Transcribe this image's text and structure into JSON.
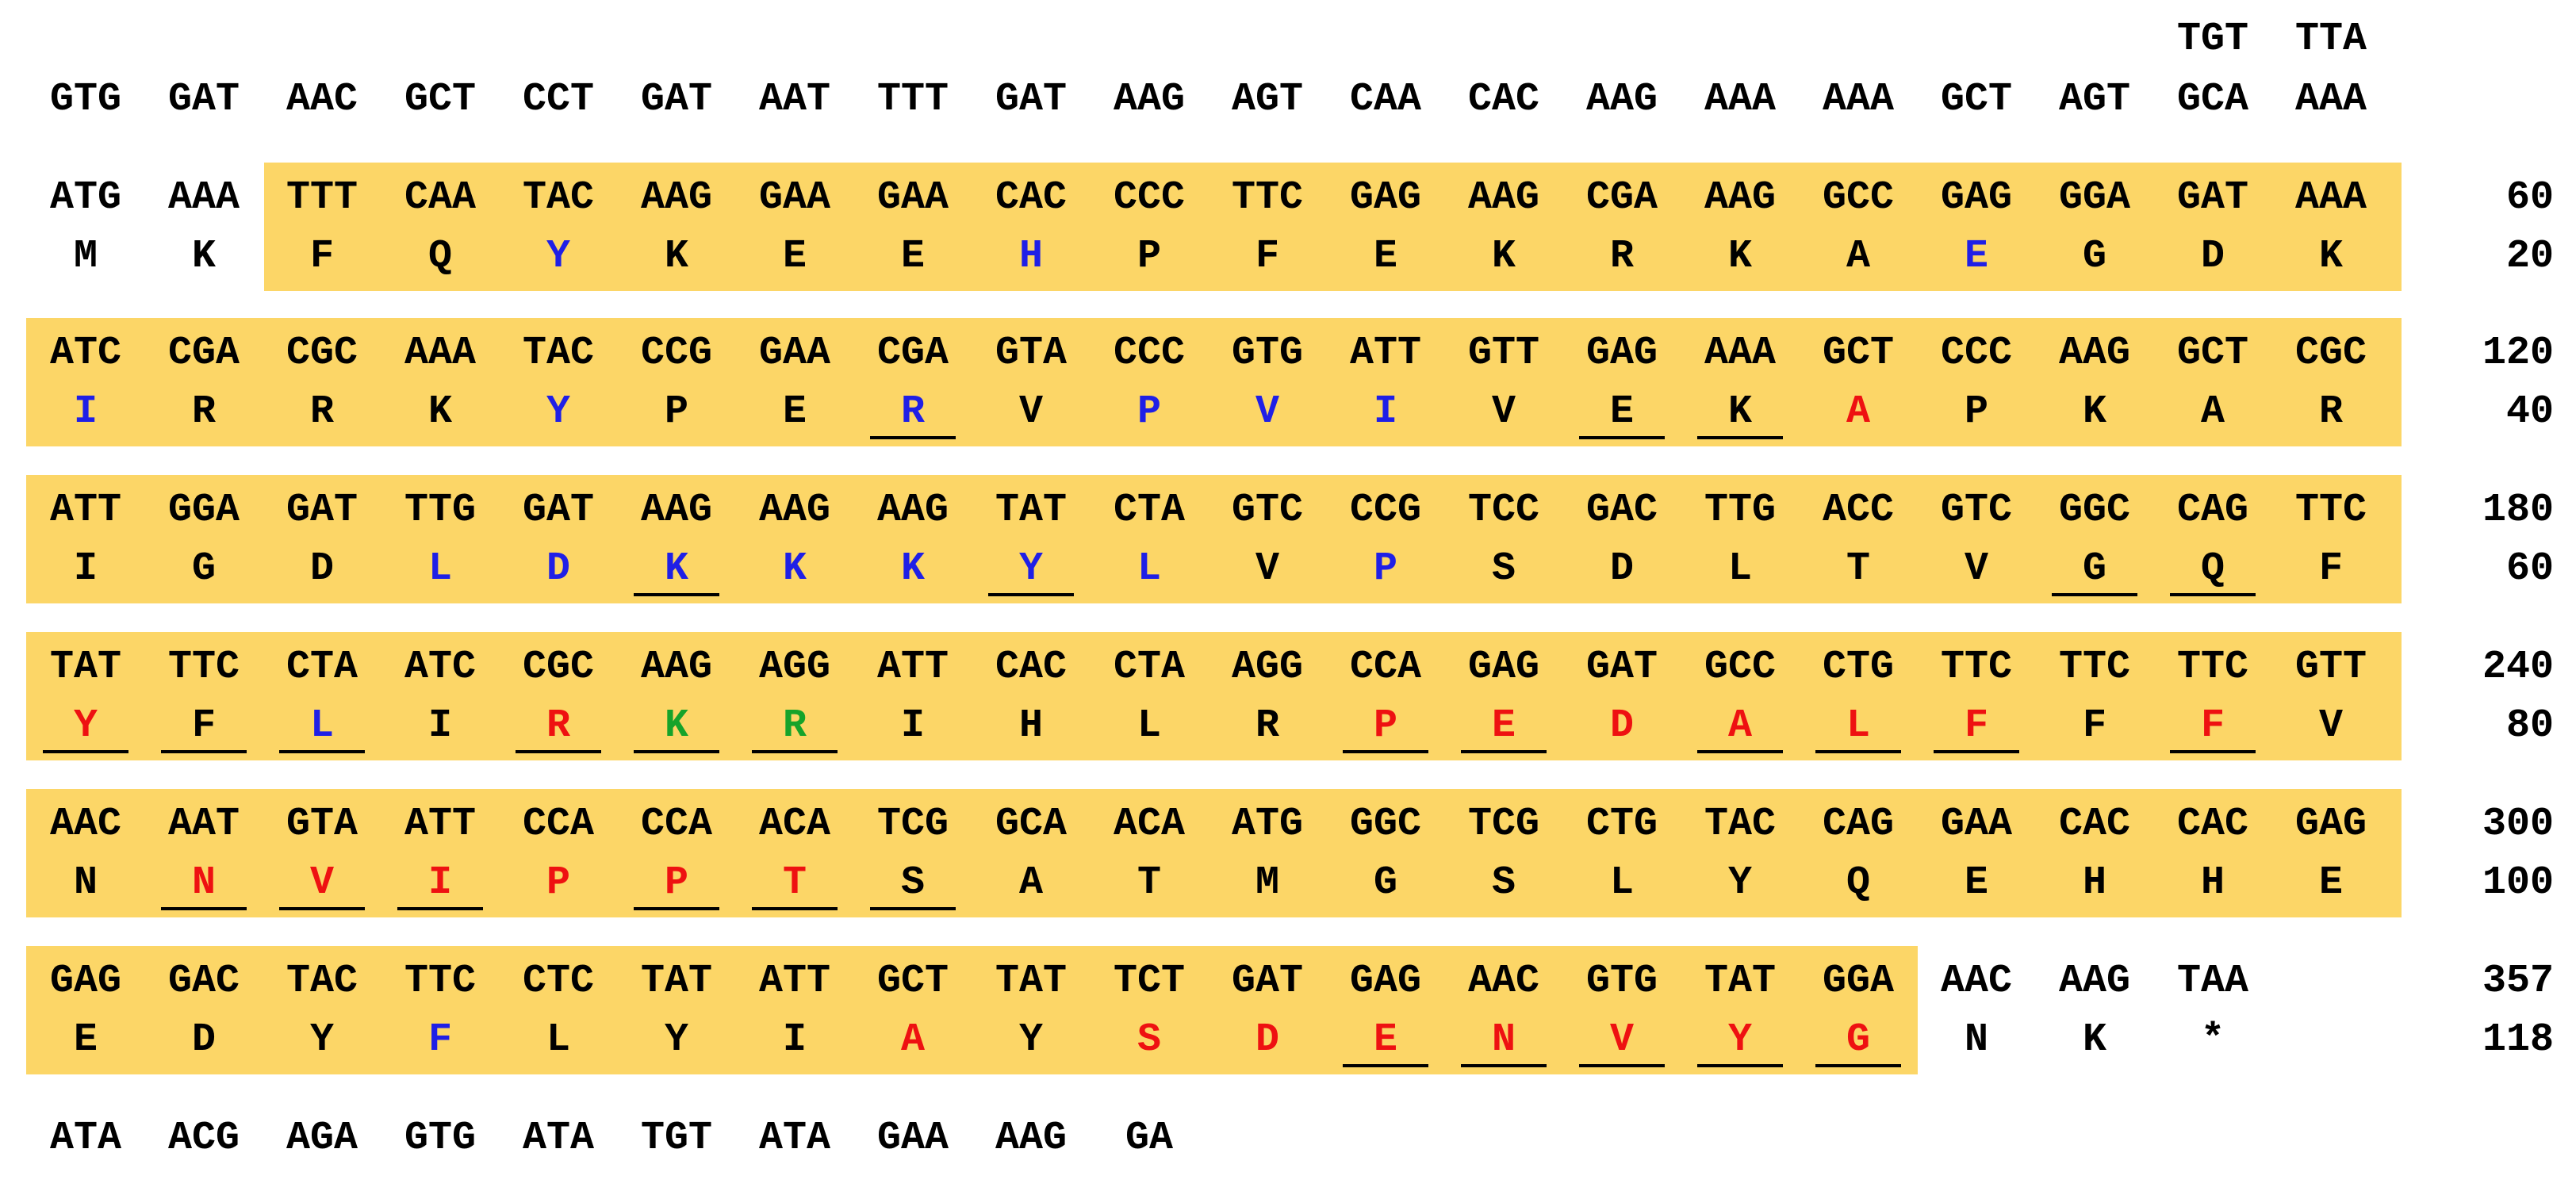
{
  "colors": {
    "highlight": "#fcd667",
    "black": "#000000",
    "blue": "#1f1fe6",
    "red": "#ee1111",
    "green": "#16a32a"
  },
  "upstream": {
    "extra": [
      "TGT",
      "TTA"
    ],
    "codons": [
      "GTG",
      "GAT",
      "AAC",
      "GCT",
      "CCT",
      "GAT",
      "AAT",
      "TTT",
      "GAT",
      "AAG",
      "AGT",
      "CAA",
      "CAC",
      "AAG",
      "AAA",
      "AAA",
      "GCT",
      "AGT",
      "GCA",
      "AAA"
    ]
  },
  "blocks": [
    {
      "nt_num": "60",
      "aa_num": "20",
      "codons": [
        "ATG",
        "AAA",
        "TTT",
        "CAA",
        "TAC",
        "AAG",
        "GAA",
        "GAA",
        "CAC",
        "CCC",
        "TTC",
        "GAG",
        "AAG",
        "CGA",
        "AAG",
        "GCC",
        "GAG",
        "GGA",
        "GAT",
        "AAA"
      ],
      "aas": [
        {
          "aa": "M",
          "color": "black",
          "underline": false
        },
        {
          "aa": "K",
          "color": "black",
          "underline": false
        },
        {
          "aa": "F",
          "color": "black",
          "underline": false
        },
        {
          "aa": "Q",
          "color": "black",
          "underline": false
        },
        {
          "aa": "Y",
          "color": "blue",
          "underline": false
        },
        {
          "aa": "K",
          "color": "black",
          "underline": false
        },
        {
          "aa": "E",
          "color": "black",
          "underline": false
        },
        {
          "aa": "E",
          "color": "black",
          "underline": false
        },
        {
          "aa": "H",
          "color": "blue",
          "underline": false
        },
        {
          "aa": "P",
          "color": "black",
          "underline": false
        },
        {
          "aa": "F",
          "color": "black",
          "underline": false
        },
        {
          "aa": "E",
          "color": "black",
          "underline": false
        },
        {
          "aa": "K",
          "color": "black",
          "underline": false
        },
        {
          "aa": "R",
          "color": "black",
          "underline": false
        },
        {
          "aa": "K",
          "color": "black",
          "underline": false
        },
        {
          "aa": "A",
          "color": "black",
          "underline": false
        },
        {
          "aa": "E",
          "color": "blue",
          "underline": false
        },
        {
          "aa": "G",
          "color": "black",
          "underline": false
        },
        {
          "aa": "D",
          "color": "black",
          "underline": false
        },
        {
          "aa": "K",
          "color": "black",
          "underline": false
        }
      ]
    },
    {
      "nt_num": "120",
      "aa_num": "40",
      "codons": [
        "ATC",
        "CGA",
        "CGC",
        "AAA",
        "TAC",
        "CCG",
        "GAA",
        "CGA",
        "GTA",
        "CCC",
        "GTG",
        "ATT",
        "GTT",
        "GAG",
        "AAA",
        "GCT",
        "CCC",
        "AAG",
        "GCT",
        "CGC"
      ],
      "aas": [
        {
          "aa": "I",
          "color": "blue",
          "underline": false
        },
        {
          "aa": "R",
          "color": "black",
          "underline": false
        },
        {
          "aa": "R",
          "color": "black",
          "underline": false
        },
        {
          "aa": "K",
          "color": "black",
          "underline": false
        },
        {
          "aa": "Y",
          "color": "blue",
          "underline": false
        },
        {
          "aa": "P",
          "color": "black",
          "underline": false
        },
        {
          "aa": "E",
          "color": "black",
          "underline": false
        },
        {
          "aa": "R",
          "color": "blue",
          "underline": true
        },
        {
          "aa": "V",
          "color": "black",
          "underline": false
        },
        {
          "aa": "P",
          "color": "blue",
          "underline": false
        },
        {
          "aa": "V",
          "color": "blue",
          "underline": false
        },
        {
          "aa": "I",
          "color": "blue",
          "underline": false
        },
        {
          "aa": "V",
          "color": "black",
          "underline": false
        },
        {
          "aa": "E",
          "color": "black",
          "underline": true
        },
        {
          "aa": "K",
          "color": "black",
          "underline": true
        },
        {
          "aa": "A",
          "color": "red",
          "underline": false
        },
        {
          "aa": "P",
          "color": "black",
          "underline": false
        },
        {
          "aa": "K",
          "color": "black",
          "underline": false
        },
        {
          "aa": "A",
          "color": "black",
          "underline": false
        },
        {
          "aa": "R",
          "color": "black",
          "underline": false
        }
      ]
    },
    {
      "nt_num": "180",
      "aa_num": "60",
      "codons": [
        "ATT",
        "GGA",
        "GAT",
        "TTG",
        "GAT",
        "AAG",
        "AAG",
        "AAG",
        "TAT",
        "CTA",
        "GTC",
        "CCG",
        "TCC",
        "GAC",
        "TTG",
        "ACC",
        "GTC",
        "GGC",
        "CAG",
        "TTC"
      ],
      "aas": [
        {
          "aa": "I",
          "color": "black",
          "underline": false
        },
        {
          "aa": "G",
          "color": "black",
          "underline": false
        },
        {
          "aa": "D",
          "color": "black",
          "underline": false
        },
        {
          "aa": "L",
          "color": "blue",
          "underline": false
        },
        {
          "aa": "D",
          "color": "blue",
          "underline": false
        },
        {
          "aa": "K",
          "color": "blue",
          "underline": true
        },
        {
          "aa": "K",
          "color": "blue",
          "underline": false
        },
        {
          "aa": "K",
          "color": "blue",
          "underline": false
        },
        {
          "aa": "Y",
          "color": "blue",
          "underline": true
        },
        {
          "aa": "L",
          "color": "blue",
          "underline": false
        },
        {
          "aa": "V",
          "color": "black",
          "underline": false
        },
        {
          "aa": "P",
          "color": "blue",
          "underline": false
        },
        {
          "aa": "S",
          "color": "black",
          "underline": false
        },
        {
          "aa": "D",
          "color": "black",
          "underline": false
        },
        {
          "aa": "L",
          "color": "black",
          "underline": false
        },
        {
          "aa": "T",
          "color": "black",
          "underline": false
        },
        {
          "aa": "V",
          "color": "black",
          "underline": false
        },
        {
          "aa": "G",
          "color": "black",
          "underline": true
        },
        {
          "aa": "Q",
          "color": "black",
          "underline": true
        },
        {
          "aa": "F",
          "color": "black",
          "underline": false
        }
      ]
    },
    {
      "nt_num": "240",
      "aa_num": "80",
      "codons": [
        "TAT",
        "TTC",
        "CTA",
        "ATC",
        "CGC",
        "AAG",
        "AGG",
        "ATT",
        "CAC",
        "CTA",
        "AGG",
        "CCA",
        "GAG",
        "GAT",
        "GCC",
        "CTG",
        "TTC",
        "TTC",
        "TTC",
        "GTT"
      ],
      "aas": [
        {
          "aa": "Y",
          "color": "red",
          "underline": true
        },
        {
          "aa": "F",
          "color": "black",
          "underline": true
        },
        {
          "aa": "L",
          "color": "blue",
          "underline": true
        },
        {
          "aa": "I",
          "color": "black",
          "underline": false
        },
        {
          "aa": "R",
          "color": "red",
          "underline": true
        },
        {
          "aa": "K",
          "color": "green",
          "underline": true
        },
        {
          "aa": "R",
          "color": "green",
          "underline": true
        },
        {
          "aa": "I",
          "color": "black",
          "underline": false
        },
        {
          "aa": "H",
          "color": "black",
          "underline": false
        },
        {
          "aa": "L",
          "color": "black",
          "underline": false
        },
        {
          "aa": "R",
          "color": "black",
          "underline": false
        },
        {
          "aa": "P",
          "color": "red",
          "underline": true
        },
        {
          "aa": "E",
          "color": "red",
          "underline": true
        },
        {
          "aa": "D",
          "color": "red",
          "underline": false
        },
        {
          "aa": "A",
          "color": "red",
          "underline": true
        },
        {
          "aa": "L",
          "color": "red",
          "underline": true
        },
        {
          "aa": "F",
          "color": "red",
          "underline": true
        },
        {
          "aa": "F",
          "color": "black",
          "underline": false
        },
        {
          "aa": "F",
          "color": "red",
          "underline": true
        },
        {
          "aa": "V",
          "color": "black",
          "underline": false
        }
      ]
    },
    {
      "nt_num": "300",
      "aa_num": "100",
      "codons": [
        "AAC",
        "AAT",
        "GTA",
        "ATT",
        "CCA",
        "CCA",
        "ACA",
        "TCG",
        "GCA",
        "ACA",
        "ATG",
        "GGC",
        "TCG",
        "CTG",
        "TAC",
        "CAG",
        "GAA",
        "CAC",
        "CAC",
        "GAG"
      ],
      "aas": [
        {
          "aa": "N",
          "color": "black",
          "underline": false
        },
        {
          "aa": "N",
          "color": "red",
          "underline": true
        },
        {
          "aa": "V",
          "color": "red",
          "underline": true
        },
        {
          "aa": "I",
          "color": "red",
          "underline": true
        },
        {
          "aa": "P",
          "color": "red",
          "underline": false
        },
        {
          "aa": "P",
          "color": "red",
          "underline": true
        },
        {
          "aa": "T",
          "color": "red",
          "underline": true
        },
        {
          "aa": "S",
          "color": "black",
          "underline": true
        },
        {
          "aa": "A",
          "color": "black",
          "underline": false
        },
        {
          "aa": "T",
          "color": "black",
          "underline": false
        },
        {
          "aa": "M",
          "color": "black",
          "underline": false
        },
        {
          "aa": "G",
          "color": "black",
          "underline": false
        },
        {
          "aa": "S",
          "color": "black",
          "underline": false
        },
        {
          "aa": "L",
          "color": "black",
          "underline": false
        },
        {
          "aa": "Y",
          "color": "black",
          "underline": false
        },
        {
          "aa": "Q",
          "color": "black",
          "underline": false
        },
        {
          "aa": "E",
          "color": "black",
          "underline": false
        },
        {
          "aa": "H",
          "color": "black",
          "underline": false
        },
        {
          "aa": "H",
          "color": "black",
          "underline": false
        },
        {
          "aa": "E",
          "color": "black",
          "underline": false
        }
      ]
    },
    {
      "nt_num": "357",
      "aa_num": "118",
      "codons": [
        "GAG",
        "GAC",
        "TAC",
        "TTC",
        "CTC",
        "TAT",
        "ATT",
        "GCT",
        "TAT",
        "TCT",
        "GAT",
        "GAG",
        "AAC",
        "GTG",
        "TAT",
        "GGA",
        "AAC",
        "AAG",
        "TAA"
      ],
      "aas": [
        {
          "aa": "E",
          "color": "black",
          "underline": false
        },
        {
          "aa": "D",
          "color": "black",
          "underline": false
        },
        {
          "aa": "Y",
          "color": "black",
          "underline": false
        },
        {
          "aa": "F",
          "color": "blue",
          "underline": false
        },
        {
          "aa": "L",
          "color": "black",
          "underline": false
        },
        {
          "aa": "Y",
          "color": "black",
          "underline": false
        },
        {
          "aa": "I",
          "color": "black",
          "underline": false
        },
        {
          "aa": "A",
          "color": "red",
          "underline": false
        },
        {
          "aa": "Y",
          "color": "black",
          "underline": false
        },
        {
          "aa": "S",
          "color": "red",
          "underline": false
        },
        {
          "aa": "D",
          "color": "red",
          "underline": false
        },
        {
          "aa": "E",
          "color": "red",
          "underline": true
        },
        {
          "aa": "N",
          "color": "red",
          "underline": true
        },
        {
          "aa": "V",
          "color": "red",
          "underline": true
        },
        {
          "aa": "Y",
          "color": "red",
          "underline": true
        },
        {
          "aa": "G",
          "color": "red",
          "underline": true
        },
        {
          "aa": "N",
          "color": "black",
          "underline": false
        },
        {
          "aa": "K",
          "color": "black",
          "underline": false
        },
        {
          "aa": "*",
          "color": "black",
          "underline": false
        }
      ]
    }
  ],
  "downstream": {
    "codons": [
      "ATA",
      "ACG",
      "AGA",
      "GTG",
      "ATA",
      "TGT",
      "ATA",
      "GAA",
      "AAG",
      "GA"
    ]
  }
}
